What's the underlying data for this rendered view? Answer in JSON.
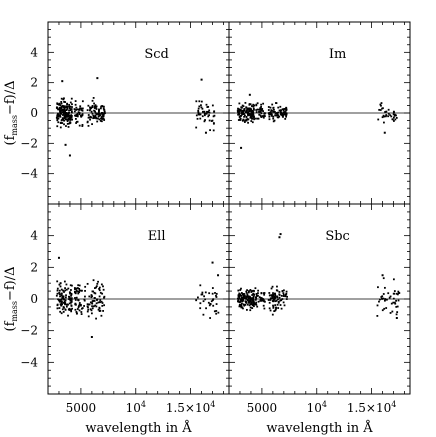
{
  "chart_data": [
    {
      "type": "scatter",
      "panel_label": "Scd",
      "xlim": [
        2000,
        18500
      ],
      "ylim": [
        -6,
        6
      ],
      "xticks": [
        5000,
        10000,
        15000
      ],
      "yticks": [
        -4,
        -2,
        0,
        2,
        4
      ],
      "reference_line_y": 0,
      "clusters": [
        {
          "x": [
            2800,
            4200
          ],
          "y": [
            -1.5,
            1.5
          ],
          "n": 160,
          "spread": 0.55
        },
        {
          "x": [
            4400,
            5200
          ],
          "y": [
            -1.2,
            1.2
          ],
          "n": 40,
          "spread": 0.5
        },
        {
          "x": [
            5600,
            7200
          ],
          "y": [
            -1.2,
            1.6
          ],
          "n": 90,
          "spread": 0.5
        },
        {
          "x": [
            15500,
            17200
          ],
          "y": [
            -1.3,
            1.8
          ],
          "n": 50,
          "spread": 0.6
        }
      ],
      "outliers": [
        {
          "x": 3300,
          "y": 2.1
        },
        {
          "x": 4000,
          "y": -2.8
        },
        {
          "x": 3600,
          "y": -2.1
        },
        {
          "x": 6500,
          "y": 2.3
        },
        {
          "x": 16000,
          "y": 2.2
        },
        {
          "x": 16400,
          "y": -1.3
        }
      ]
    },
    {
      "type": "scatter",
      "panel_label": "Im",
      "xlim": [
        2000,
        18500
      ],
      "ylim": [
        -6,
        6
      ],
      "xticks": [
        5000,
        10000,
        15000
      ],
      "yticks": [
        -4,
        -2,
        0,
        2,
        4
      ],
      "reference_line_y": 0,
      "clusters": [
        {
          "x": [
            2800,
            4300
          ],
          "y": [
            -1.0,
            1.2
          ],
          "n": 140,
          "spread": 0.4
        },
        {
          "x": [
            4400,
            5300
          ],
          "y": [
            -0.9,
            0.9
          ],
          "n": 40,
          "spread": 0.35
        },
        {
          "x": [
            5600,
            7300
          ],
          "y": [
            -0.9,
            0.9
          ],
          "n": 80,
          "spread": 0.35
        },
        {
          "x": [
            15500,
            17300
          ],
          "y": [
            -1.2,
            1.0
          ],
          "n": 35,
          "spread": 0.45
        }
      ],
      "outliers": [
        {
          "x": 3100,
          "y": -2.3
        },
        {
          "x": 3900,
          "y": 1.2
        },
        {
          "x": 16200,
          "y": -1.3
        }
      ]
    },
    {
      "type": "scatter",
      "panel_label": "Ell",
      "xlim": [
        2000,
        18500
      ],
      "ylim": [
        -6,
        6
      ],
      "xticks": [
        5000,
        10000,
        15000
      ],
      "yticks": [
        -4,
        -2,
        0,
        2,
        4
      ],
      "reference_line_y": 0,
      "clusters": [
        {
          "x": [
            2800,
            4200
          ],
          "y": [
            -1.6,
            1.6
          ],
          "n": 110,
          "spread": 0.6
        },
        {
          "x": [
            4400,
            5400
          ],
          "y": [
            -1.8,
            1.8
          ],
          "n": 50,
          "spread": 0.65
        },
        {
          "x": [
            5600,
            7200
          ],
          "y": [
            -2.3,
            1.8
          ],
          "n": 70,
          "spread": 0.7
        },
        {
          "x": [
            15500,
            17600
          ],
          "y": [
            -1.6,
            2.4
          ],
          "n": 35,
          "spread": 0.8
        }
      ],
      "outliers": [
        {
          "x": 3000,
          "y": 2.6
        },
        {
          "x": 6000,
          "y": -2.4
        },
        {
          "x": 17000,
          "y": 2.3
        },
        {
          "x": 17500,
          "y": 1.5
        }
      ]
    },
    {
      "type": "scatter",
      "panel_label": "Sbc",
      "xlim": [
        2000,
        18500
      ],
      "ylim": [
        -6,
        6
      ],
      "xticks": [
        5000,
        10000,
        15000
      ],
      "yticks": [
        -4,
        -2,
        0,
        2,
        4
      ],
      "reference_line_y": 0,
      "clusters": [
        {
          "x": [
            2800,
            4300
          ],
          "y": [
            -1.2,
            1.2
          ],
          "n": 140,
          "spread": 0.45
        },
        {
          "x": [
            4400,
            5300
          ],
          "y": [
            -1.0,
            1.0
          ],
          "n": 40,
          "spread": 0.4
        },
        {
          "x": [
            5600,
            7300
          ],
          "y": [
            -1.2,
            1.4
          ],
          "n": 80,
          "spread": 0.5
        },
        {
          "x": [
            15500,
            17600
          ],
          "y": [
            -1.3,
            1.6
          ],
          "n": 45,
          "spread": 0.6
        }
      ],
      "outliers": [
        {
          "x": 6600,
          "y": 3.9
        },
        {
          "x": 6700,
          "y": 4.1
        },
        {
          "x": 16000,
          "y": 1.5
        },
        {
          "x": 17300,
          "y": -1.2
        }
      ]
    }
  ],
  "axes": {
    "ylabel": "(f",
    "ylabel_sub": "mass",
    "ylabel_rest": "−f)/Δ",
    "xlabel": "wavelength in Å",
    "xtick_5000": "5000",
    "xtick_1e4_base": "10",
    "xtick_1e4_exp": "4",
    "xtick_15e3_base": "1.5×10",
    "xtick_15e3_exp": "4"
  }
}
